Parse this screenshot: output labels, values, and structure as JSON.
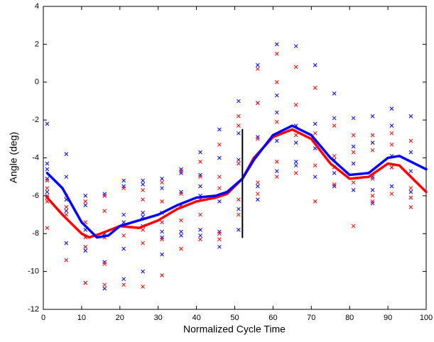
{
  "chart_data": {
    "type": "line",
    "xlabel": "Normalized Cycle Time",
    "ylabel": "Angle (deg)",
    "xlim": [
      0,
      100
    ],
    "ylim": [
      -12,
      4
    ],
    "xticks": [
      0,
      10,
      20,
      30,
      40,
      50,
      60,
      70,
      80,
      90,
      100
    ],
    "yticks": [
      -12,
      -10,
      -8,
      -6,
      -4,
      -2,
      0,
      2,
      4
    ],
    "series": [
      {
        "mode": "markers",
        "color": "#0000ff",
        "x": [
          1,
          1,
          1,
          1,
          1,
          1,
          6,
          6,
          6,
          6,
          6,
          11,
          11,
          11,
          11,
          11,
          11,
          16,
          16,
          16,
          16,
          16,
          21,
          21,
          21,
          21,
          21,
          21,
          26,
          26,
          26,
          26,
          26,
          26,
          31,
          31,
          31,
          31,
          31,
          31,
          36,
          36,
          36,
          36,
          36,
          41,
          41,
          41,
          41,
          41,
          41,
          46,
          46,
          46,
          46,
          46,
          51,
          51,
          51,
          51,
          51,
          56,
          56,
          56,
          56,
          56,
          61,
          61,
          61,
          61,
          61,
          66,
          66,
          66,
          66,
          66,
          71,
          71,
          71,
          71,
          76,
          76,
          76,
          76,
          76,
          81,
          81,
          81,
          81,
          86,
          86,
          86,
          86,
          86,
          91,
          91,
          91,
          91,
          91,
          96,
          96,
          96,
          96,
          96
        ],
        "values": [
          -2.2,
          -4.3,
          -4.6,
          -5.1,
          -5.8,
          -6.1,
          -3.8,
          -5.0,
          -6.2,
          -6.8,
          -8.5,
          -6.0,
          -6.5,
          -7.8,
          -8.7,
          -8.9,
          -10.6,
          -5.9,
          -6.0,
          -8.0,
          -9.5,
          -10.9,
          -5.2,
          -5.5,
          -7.0,
          -7.4,
          -8.8,
          -10.4,
          -5.2,
          -5.4,
          -6.9,
          -7.1,
          -7.6,
          -10.0,
          -5.1,
          -5.6,
          -6.9,
          -7.9,
          -8.2,
          -9.1,
          -4.6,
          -4.8,
          -5.8,
          -7.9,
          -8.1,
          -3.7,
          -4.9,
          -5.5,
          -6.0,
          -7.8,
          -8.1,
          -2.5,
          -4.0,
          -6.3,
          -7.9,
          -8.7,
          -1.0,
          -2.7,
          -4.1,
          -6.7,
          -7.8,
          0.9,
          -1.1,
          -2.9,
          -5.5,
          -6.2,
          2.0,
          -0.7,
          -1.6,
          -3.1,
          -4.7,
          1.9,
          -2.3,
          -3.2,
          -4.2,
          -4.4,
          0.9,
          -2.2,
          -3.5,
          -5.0,
          -0.6,
          -1.9,
          -4.1,
          -4.8,
          -5.5,
          -1.9,
          -3.4,
          -4.3,
          -5.7,
          -1.8,
          -3.2,
          -5.0,
          -5.7,
          -6.4,
          -1.4,
          -2.3,
          -3.9,
          -4.5,
          -5.5,
          -1.8,
          -3.7,
          -4.7,
          -5.8,
          -6.1
        ]
      },
      {
        "mode": "markers",
        "color": "#ff0000",
        "x": [
          1,
          1,
          1,
          1,
          1,
          6,
          6,
          6,
          6,
          11,
          11,
          11,
          11,
          11,
          16,
          16,
          16,
          16,
          16,
          21,
          21,
          21,
          21,
          26,
          26,
          26,
          26,
          26,
          31,
          31,
          31,
          31,
          31,
          36,
          36,
          36,
          36,
          36,
          41,
          41,
          41,
          41,
          41,
          46,
          46,
          46,
          46,
          46,
          51,
          51,
          51,
          51,
          51,
          56,
          56,
          56,
          56,
          56,
          61,
          61,
          61,
          61,
          61,
          66,
          66,
          66,
          66,
          71,
          71,
          71,
          71,
          76,
          76,
          76,
          76,
          81,
          81,
          81,
          81,
          86,
          86,
          86,
          86,
          86,
          91,
          91,
          91,
          91,
          96,
          96,
          96,
          96
        ],
        "values": [
          -5.2,
          -5.6,
          -6.0,
          -6.3,
          -7.7,
          -6.0,
          -6.6,
          -7.0,
          -9.4,
          -6.3,
          -7.4,
          -8.2,
          -8.7,
          -10.6,
          -6.0,
          -6.8,
          -8.2,
          -9.6,
          -10.7,
          -5.6,
          -7.6,
          -8.1,
          -10.7,
          -5.7,
          -6.2,
          -7.8,
          -8.5,
          -10.8,
          -5.3,
          -6.3,
          -7.4,
          -8.3,
          -10.2,
          -4.7,
          -5.9,
          -6.5,
          -7.3,
          -8.8,
          -4.2,
          -5.0,
          -6.2,
          -7.0,
          -8.3,
          -3.3,
          -5.0,
          -5.6,
          -8.0,
          -8.3,
          -1.8,
          -2.3,
          -4.3,
          -6.2,
          -7.0,
          0.7,
          -1.1,
          -3.0,
          -5.3,
          -5.9,
          1.5,
          0.0,
          -2.1,
          -4.2,
          -5.0,
          0.8,
          -1.2,
          -2.8,
          -4.8,
          -0.3,
          -2.7,
          -4.4,
          -6.3,
          -2.3,
          -3.9,
          -4.5,
          -5.4,
          -2.8,
          -3.7,
          -5.3,
          -7.6,
          -2.8,
          -3.6,
          -5.1,
          -6.0,
          -6.3,
          -2.7,
          -3.3,
          -4.5,
          -5.9,
          -3.1,
          -5.6,
          -6.1,
          -6.6
        ]
      },
      {
        "mode": "lines",
        "color": "#ff0000",
        "width": 3.5,
        "x": [
          1,
          5,
          10,
          12,
          15,
          20,
          25,
          30,
          35,
          40,
          45,
          48,
          52,
          55,
          60,
          65,
          70,
          75,
          80,
          85,
          90,
          93,
          100
        ],
        "values": [
          -6.1,
          -7.0,
          -8.0,
          -8.2,
          -8.0,
          -7.6,
          -7.7,
          -7.3,
          -6.7,
          -6.3,
          -6.1,
          -5.9,
          -5.1,
          -4.0,
          -2.9,
          -2.5,
          -3.0,
          -4.3,
          -5.1,
          -5.0,
          -4.3,
          -4.4,
          -5.8
        ]
      },
      {
        "mode": "lines",
        "color": "#0000ff",
        "width": 3.5,
        "x": [
          1,
          5,
          10,
          14,
          17,
          20,
          25,
          30,
          35,
          40,
          45,
          48,
          52,
          55,
          60,
          65,
          70,
          75,
          80,
          85,
          90,
          93,
          100
        ],
        "values": [
          -4.8,
          -5.6,
          -7.4,
          -8.2,
          -8.1,
          -7.6,
          -7.3,
          -7.0,
          -6.5,
          -6.1,
          -6.0,
          -5.8,
          -5.1,
          -4.1,
          -2.8,
          -2.3,
          -2.8,
          -4.0,
          -4.9,
          -4.8,
          -4.0,
          -3.9,
          -4.6
        ]
      },
      {
        "mode": "lines",
        "color": "#000000",
        "width": 2,
        "x": [
          52,
          52
        ],
        "values": [
          -8.2,
          -2.5
        ]
      }
    ]
  }
}
